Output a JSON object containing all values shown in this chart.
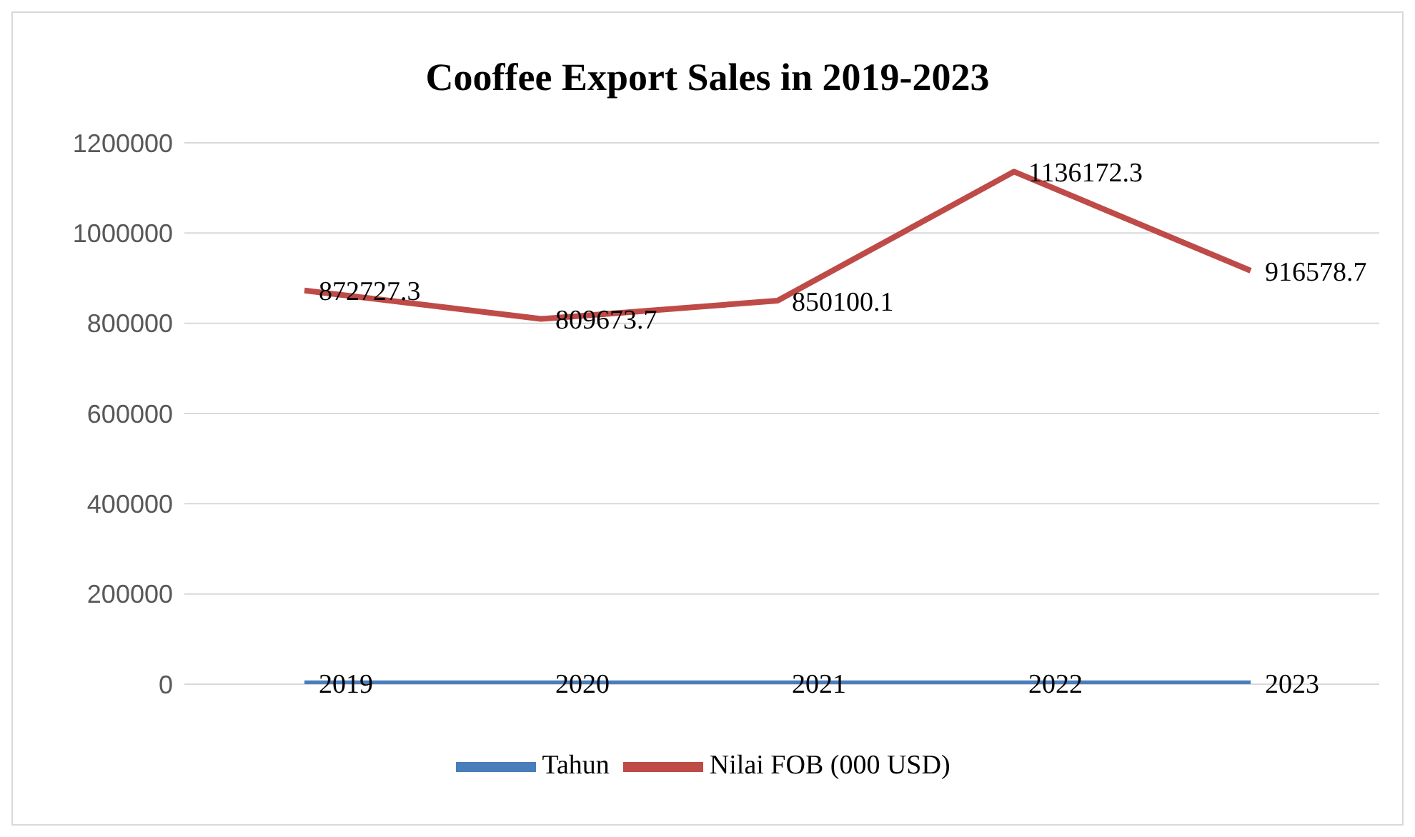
{
  "chart_data": {
    "type": "line",
    "title": "Cooffee Export Sales in 2019-2023",
    "categories": [
      null,
      null,
      null,
      null,
      null
    ],
    "series": [
      {
        "name": "Tahun",
        "color": "#4a7ebb",
        "values": [
          2019,
          2020,
          2021,
          2022,
          2023
        ]
      },
      {
        "name": "Nilai FOB (000 USD)",
        "color": "#be4b48",
        "values": [
          872727.3,
          809673.7,
          850100.1,
          1136172.3,
          916578.7
        ]
      }
    ],
    "ylim": [
      0,
      1200000
    ],
    "yticks": [
      0,
      200000,
      400000,
      600000,
      800000,
      1000000,
      1200000
    ],
    "grid": "y",
    "legend": "bottom",
    "marker": "none",
    "line_style": "solid",
    "data_labels": true
  }
}
